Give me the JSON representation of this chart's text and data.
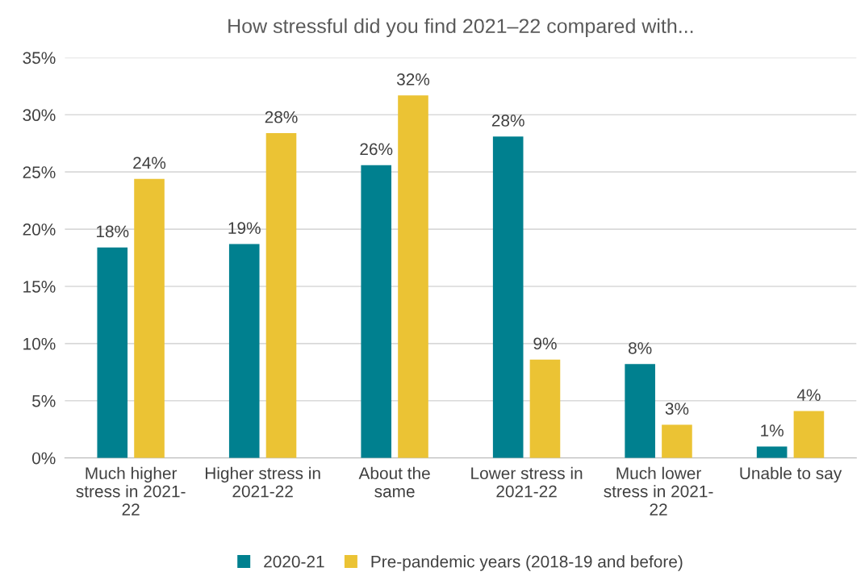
{
  "chart_data": {
    "type": "bar",
    "title": "How stressful did you find 2021–22 compared with...",
    "categories": [
      "Much higher\nstress in 2021-\n22",
      "Higher stress in\n2021-22",
      "About the\nsame",
      "Lower stress in\n2021-22",
      "Much lower\nstress in 2021-\n22",
      "Unable to say"
    ],
    "series": [
      {
        "name": "2020-21",
        "color": "#00808f",
        "values": [
          18.4,
          18.7,
          25.6,
          28.1,
          8.2,
          1.0
        ],
        "value_labels": [
          "18%",
          "19%",
          "26%",
          "28%",
          "8%",
          "1%"
        ]
      },
      {
        "name": "Pre-pandemic years (2018-19 and before)",
        "color": "#ebc334",
        "values": [
          24.4,
          28.4,
          31.7,
          8.6,
          2.9,
          4.1
        ],
        "value_labels": [
          "24%",
          "28%",
          "32%",
          "9%",
          "3%",
          "4%"
        ]
      }
    ],
    "ylim": [
      0,
      35
    ],
    "yticks": [
      {
        "value": 0,
        "label": "0%"
      },
      {
        "value": 5,
        "label": "5%"
      },
      {
        "value": 10,
        "label": "10%"
      },
      {
        "value": 15,
        "label": "15%"
      },
      {
        "value": 20,
        "label": "20%"
      },
      {
        "value": 25,
        "label": "25%"
      },
      {
        "value": 30,
        "label": "30%"
      },
      {
        "value": 35,
        "label": "35%"
      }
    ],
    "grid": "y",
    "legend": "bottom"
  }
}
